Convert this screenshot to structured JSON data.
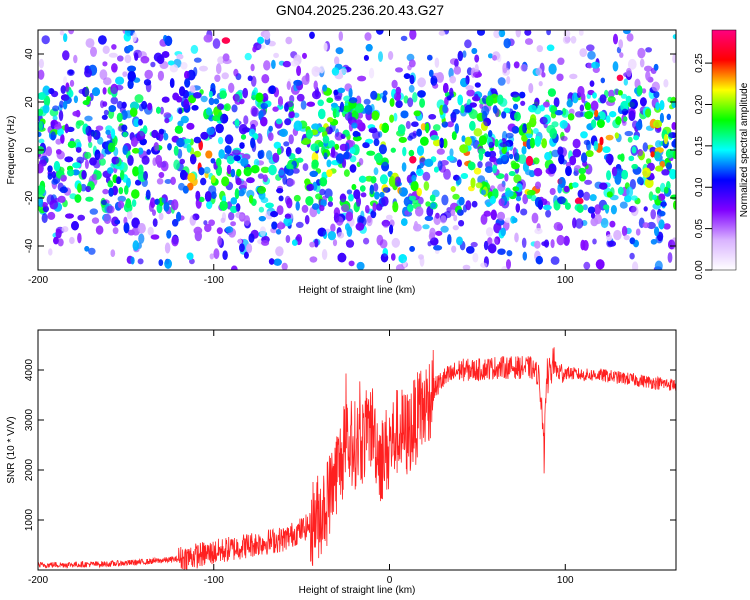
{
  "title": "GN04.2025.236.20.43.G27",
  "chart_data": [
    {
      "type": "heatmap",
      "xlabel": "Height of straight line (km)",
      "ylabel": "Frequency (Hz)",
      "xlim": [
        -200,
        163
      ],
      "ylim": [
        -50,
        50
      ],
      "xticks": [
        -200,
        -100,
        0,
        100
      ],
      "yticks": [
        -40,
        -20,
        0,
        20,
        40
      ],
      "colorbar": {
        "label": "Normalized spectral amplitude",
        "range": [
          0.0,
          0.29
        ],
        "ticks": [
          "0.00",
          "0.05",
          "0.10",
          "0.15",
          "0.20",
          "0.25"
        ],
        "colors": [
          "#ffffff",
          "#d9b3ff",
          "#8000ff",
          "#0000ff",
          "#00ffff",
          "#00ff00",
          "#ffff00",
          "#ff0000",
          "#ff0080"
        ]
      },
      "features": {
        "noise_band_hz": [
          -25,
          25
        ],
        "bright_clusters_km": [
          -108,
          -40,
          0,
          20,
          45,
          80,
          120,
          150
        ]
      }
    },
    {
      "type": "line",
      "xlabel": "Height of straight line (km)",
      "ylabel": "SNR (10 * V/V)",
      "xlim": [
        -200,
        163
      ],
      "ylim": [
        0,
        4800
      ],
      "xticks": [
        -200,
        -100,
        0,
        100
      ],
      "yticks": [
        1000,
        2000,
        3000,
        4000
      ],
      "color": "#ff2020",
      "series": [
        {
          "x": [
            -200,
            -180,
            -160,
            -140,
            -120,
            -100,
            -80,
            -60,
            -45,
            -40,
            -35,
            -30,
            -25,
            -20,
            -15,
            -10,
            -5,
            0,
            5,
            10,
            15,
            20,
            25,
            30,
            40,
            50,
            60,
            70,
            80,
            85,
            88,
            90,
            92,
            95,
            100,
            110,
            120,
            130,
            140,
            150,
            163
          ],
          "values": [
            100,
            110,
            120,
            160,
            220,
            350,
            500,
            620,
            900,
            1100,
            1400,
            2000,
            2400,
            2500,
            2600,
            2900,
            2200,
            2500,
            2800,
            2700,
            3000,
            3300,
            3600,
            3800,
            4000,
            4000,
            4050,
            4050,
            4050,
            3900,
            2600,
            4200,
            3900,
            3950,
            3950,
            3900,
            3900,
            3850,
            3800,
            3750,
            3700
          ]
        }
      ]
    }
  ]
}
